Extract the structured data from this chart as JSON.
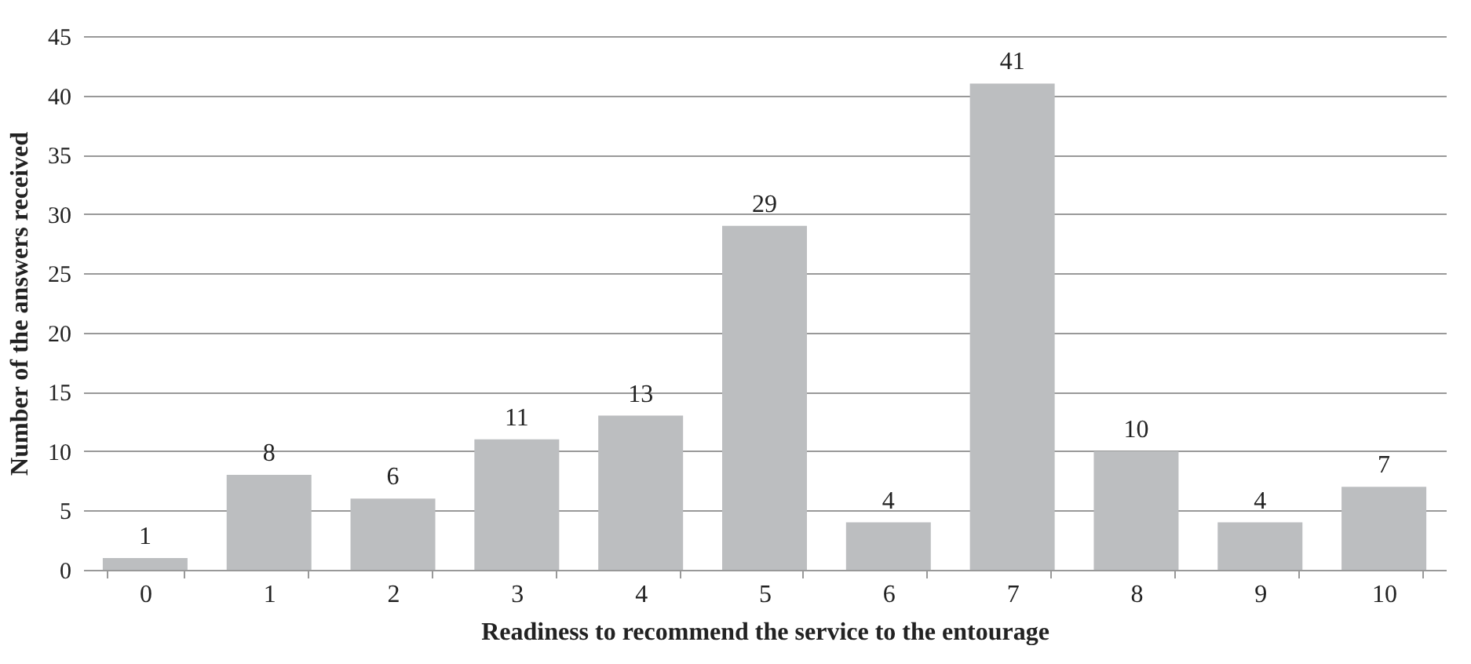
{
  "chart_data": {
    "type": "bar",
    "xlabel": "Readiness to recommend the service to the entourage",
    "ylabel": "Number of the answers received",
    "categories": [
      "0",
      "1",
      "2",
      "3",
      "4",
      "5",
      "6",
      "7",
      "8",
      "9",
      "10"
    ],
    "values": [
      1,
      8,
      6,
      11,
      13,
      29,
      4,
      41,
      10,
      4,
      7
    ],
    "color": "#bcbec0",
    "ylim": [
      0,
      45
    ],
    "yticks": [
      0,
      5,
      10,
      15,
      20,
      25,
      30,
      35,
      40,
      45
    ],
    "grid": "y",
    "data_labels": true
  }
}
